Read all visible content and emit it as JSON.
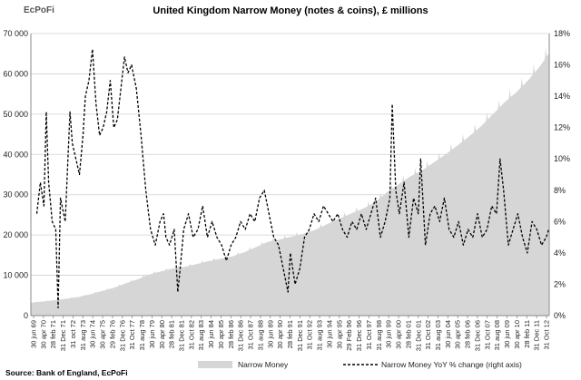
{
  "chart_data": {
    "type": "area",
    "title": "United Kingdom Narrow Money (notes & coins), £ millions",
    "source": "Source: Bank of England, EcPoFi",
    "watermark": "EcPoFi",
    "left_axis": {
      "ylim": [
        0,
        70000
      ],
      "ticks": [
        0,
        10000,
        20000,
        30000,
        40000,
        50000,
        60000,
        70000
      ],
      "tick_labels": [
        "0",
        "10 000",
        "20 000",
        "30 000",
        "40 000",
        "50 000",
        "60 000",
        "70 000"
      ]
    },
    "right_axis": {
      "ylim": [
        0,
        18
      ],
      "ticks": [
        0,
        2,
        4,
        6,
        8,
        10,
        12,
        14,
        16,
        18
      ],
      "tick_labels": [
        "0%",
        "2%",
        "4%",
        "6%",
        "8%",
        "10%",
        "12%",
        "14%",
        "16%",
        "18%"
      ]
    },
    "x_axis": {
      "range": [
        1969.5,
        2013.25
      ],
      "tick_labels": [
        "30 jun 69",
        "30 apr 70",
        "28 feb 71",
        "31 Dec 71",
        "31 oct 72",
        "31 aug 73",
        "30 jun 74",
        "30 apr 75",
        "29 feb 76",
        "31 Dec 76",
        "31 Oct 77",
        "31 aug 78",
        "30 jun 79",
        "30 apr 80",
        "28 feb 81",
        "31 Dec 81",
        "31 Oct 82",
        "31 aug 83",
        "30 jun 84",
        "30 apr 85",
        "28 feb 86",
        "31 Dec 86",
        "31 Oct 87",
        "31 aug 88",
        "30 jun 89",
        "30 apr 90",
        "28 feb 91",
        "31 Dec 91",
        "31 Oct 92",
        "31 aug 93",
        "30 jun 94",
        "30 apr 95",
        "29 Feb 96",
        "31 Dec 96",
        "31 Oct 97",
        "31 aug 98",
        "30 jun 99",
        "30 apr 00",
        "28 feb 01",
        "31 Dec 01",
        "31 Oct 02",
        "31 aug 03",
        "30 jun 04",
        "30 apr 05",
        "28 feb 06",
        "31 Dec 06",
        "31 Oct 07",
        "31 aug 08",
        "30 jun 09",
        "30 apr 10",
        "28 feb 11",
        "31 Dec 11",
        "31 Oct 12"
      ]
    },
    "grid": true,
    "legend_position": "bottom",
    "series": [
      {
        "name": "Narrow Money",
        "type": "area",
        "axis": "left",
        "color": "#d6d6d6",
        "x": [
          1969.5,
          1970.5,
          1971.5,
          1972.5,
          1973.5,
          1974.5,
          1975.5,
          1976.5,
          1977.5,
          1978.5,
          1979.5,
          1980.5,
          1981.5,
          1982.5,
          1983.5,
          1984.5,
          1985.5,
          1986.5,
          1987.5,
          1988.5,
          1989.5,
          1990.5,
          1991.5,
          1992.5,
          1993.5,
          1994.5,
          1995.5,
          1996.5,
          1997.5,
          1998.5,
          1999.5,
          2000.5,
          2001.5,
          2002.5,
          2003.5,
          2004.5,
          2005.5,
          2006.5,
          2007.5,
          2008.5,
          2009.5,
          2010.5,
          2011.5,
          2012.5,
          2013.2
        ],
        "values": [
          3200,
          3500,
          3800,
          4200,
          4600,
          5300,
          6100,
          6900,
          8000,
          9000,
          10200,
          11000,
          11700,
          12100,
          12800,
          13500,
          14100,
          14700,
          15700,
          17000,
          18300,
          18900,
          19600,
          20300,
          21300,
          22700,
          24000,
          25300,
          26500,
          28000,
          30500,
          32500,
          34500,
          36000,
          38000,
          40000,
          42200,
          44500,
          47000,
          50000,
          53000,
          55500,
          58500,
          62000,
          65000
        ]
      },
      {
        "name": "Narrow Money YoY % change (right axis)",
        "type": "line",
        "axis": "right",
        "style": "dashed",
        "color": "#000000",
        "x": [
          1970.0,
          1970.3,
          1970.6,
          1970.8,
          1971.0,
          1971.3,
          1971.6,
          1971.8,
          1972.0,
          1972.4,
          1972.8,
          1973.0,
          1973.3,
          1973.6,
          1973.9,
          1974.1,
          1974.4,
          1974.7,
          1975.0,
          1975.3,
          1975.6,
          1975.9,
          1976.2,
          1976.5,
          1976.8,
          1977.1,
          1977.4,
          1977.7,
          1978.0,
          1978.4,
          1978.8,
          1979.2,
          1979.6,
          1980.0,
          1980.4,
          1980.7,
          1980.9,
          1981.2,
          1981.6,
          1981.9,
          1982.1,
          1982.4,
          1982.8,
          1983.2,
          1983.6,
          1984.0,
          1984.4,
          1984.8,
          1985.2,
          1985.6,
          1986.0,
          1986.4,
          1986.8,
          1987.2,
          1987.6,
          1988.0,
          1988.4,
          1988.8,
          1989.2,
          1989.6,
          1990.0,
          1990.4,
          1990.8,
          1991.2,
          1991.4,
          1991.8,
          1992.2,
          1992.6,
          1993.0,
          1993.4,
          1993.8,
          1994.2,
          1994.6,
          1995.0,
          1995.4,
          1995.8,
          1996.2,
          1996.6,
          1997.0,
          1997.4,
          1997.8,
          1998.2,
          1998.6,
          1999.0,
          1999.4,
          1999.8,
          2000.0,
          2000.3,
          2000.6,
          2001.0,
          2001.4,
          2001.8,
          2002.2,
          2002.4,
          2002.8,
          2003.2,
          2003.6,
          2004.0,
          2004.4,
          2004.8,
          2005.2,
          2005.6,
          2006.0,
          2006.4,
          2006.8,
          2007.2,
          2007.6,
          2008.0,
          2008.4,
          2008.8,
          2009.1,
          2009.4,
          2009.8,
          2010.2,
          2010.6,
          2011.0,
          2011.4,
          2011.8,
          2012.2,
          2012.6,
          2013.0,
          2013.2
        ],
        "values": [
          6.5,
          8.5,
          7.0,
          13.0,
          8.5,
          6.0,
          5.5,
          0.5,
          7.5,
          6.0,
          13.0,
          11.0,
          10.0,
          9.0,
          11.5,
          14.0,
          15.0,
          17.0,
          13.5,
          11.5,
          12.0,
          13.0,
          15.0,
          12.0,
          12.5,
          14.5,
          16.5,
          15.5,
          16.0,
          14.5,
          11.5,
          8.0,
          5.5,
          4.5,
          6.0,
          6.5,
          5.0,
          4.5,
          5.5,
          1.5,
          3.0,
          5.5,
          6.5,
          5.0,
          5.5,
          7.0,
          5.0,
          6.0,
          5.0,
          4.5,
          3.5,
          4.5,
          5.0,
          6.0,
          5.5,
          6.5,
          6.0,
          7.5,
          8.0,
          6.5,
          5.0,
          4.5,
          3.0,
          1.5,
          4.0,
          2.0,
          3.0,
          5.0,
          5.5,
          6.5,
          6.0,
          7.0,
          6.5,
          6.0,
          6.5,
          5.5,
          5.0,
          6.0,
          5.5,
          6.5,
          5.5,
          6.5,
          7.5,
          5.0,
          6.0,
          7.5,
          13.5,
          8.0,
          6.5,
          8.5,
          5.0,
          7.5,
          6.5,
          10.0,
          4.5,
          6.5,
          7.0,
          6.0,
          7.5,
          5.5,
          5.0,
          6.0,
          4.5,
          5.5,
          5.0,
          6.5,
          5.0,
          5.5,
          7.0,
          6.5,
          10.0,
          8.0,
          4.5,
          5.5,
          6.5,
          5.0,
          4.0,
          6.0,
          5.5,
          4.5,
          5.0,
          5.5
        ]
      }
    ]
  }
}
